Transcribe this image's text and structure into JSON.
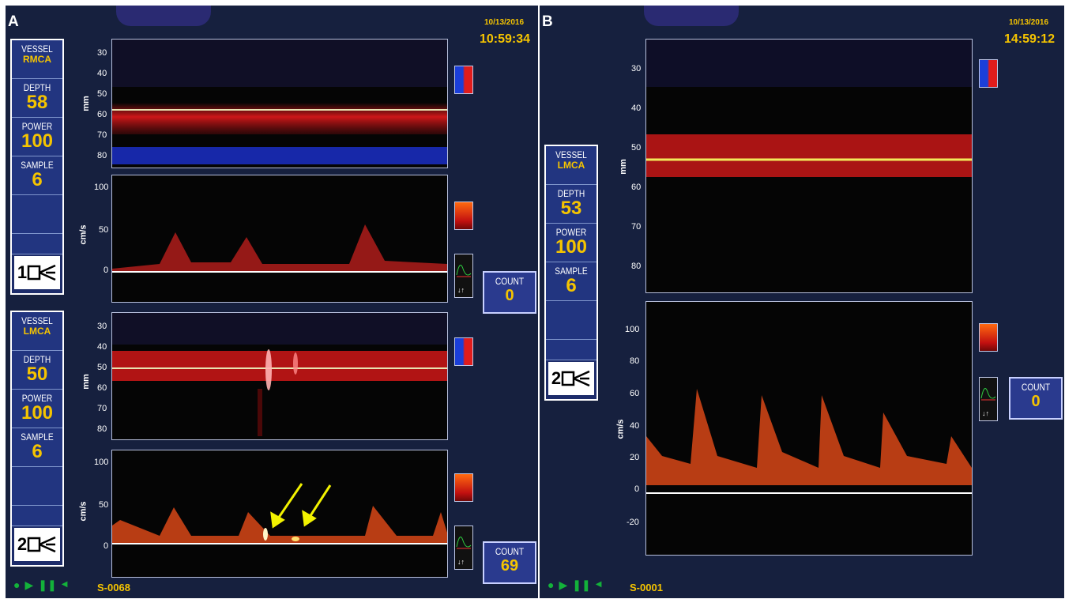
{
  "panelA": {
    "label": "A",
    "date": "10/13/2016",
    "time": "10:59:34",
    "sample_id": "S-0068",
    "channels": [
      {
        "channel_number": "1",
        "vessel_label": "VESSEL",
        "vessel": "RMCA",
        "depth_label": "DEPTH",
        "depth": "58",
        "power_label": "POWER",
        "power": "100",
        "sample_label": "SAMPLE",
        "sample": "6",
        "mmode_unit": "mm",
        "mmode_ticks": [
          "30",
          "40",
          "50",
          "60",
          "70",
          "80"
        ],
        "spectrum_unit": "cm/s",
        "spectrum_ticks": [
          "100",
          "50",
          "0"
        ],
        "count_label": "COUNT",
        "count": "0"
      },
      {
        "channel_number": "2",
        "vessel_label": "VESSEL",
        "vessel": "LMCA",
        "depth_label": "DEPTH",
        "depth": "50",
        "power_label": "POWER",
        "power": "100",
        "sample_label": "SAMPLE",
        "sample": "6",
        "mmode_unit": "mm",
        "mmode_ticks": [
          "30",
          "40",
          "50",
          "60",
          "70",
          "80"
        ],
        "spectrum_unit": "cm/s",
        "spectrum_ticks": [
          "100",
          "50",
          "0"
        ],
        "count_label": "COUNT",
        "count": "69"
      }
    ]
  },
  "panelB": {
    "label": "B",
    "date": "10/13/2016",
    "time": "14:59:12",
    "sample_id": "S-0001",
    "channel": {
      "channel_number": "2",
      "vessel_label": "VESSEL",
      "vessel": "LMCA",
      "depth_label": "DEPTH",
      "depth": "53",
      "power_label": "POWER",
      "power": "100",
      "sample_label": "SAMPLE",
      "sample": "6",
      "mmode_unit": "mm",
      "mmode_ticks": [
        "30",
        "40",
        "50",
        "60",
        "70",
        "80"
      ],
      "spectrum_unit": "cm/s",
      "spectrum_ticks": [
        "100",
        "80",
        "60",
        "40",
        "20",
        "0",
        "-20"
      ],
      "count_label": "COUNT",
      "count": "0"
    }
  },
  "colors": {
    "background": "#16203e",
    "accent_text": "#f5c400",
    "gate_line": "#f2e85a",
    "flow_red": "#d8181a",
    "flow_blue": "#1b3fd9",
    "button_green": "#13b23a"
  },
  "icons": [
    "probe-channel-icon",
    "bipolar-scale-icon",
    "heat-scale-icon",
    "waveform-icon",
    "play-icon",
    "pause-icon",
    "record-icon",
    "volume-icon",
    "annotation-arrow-icon"
  ]
}
